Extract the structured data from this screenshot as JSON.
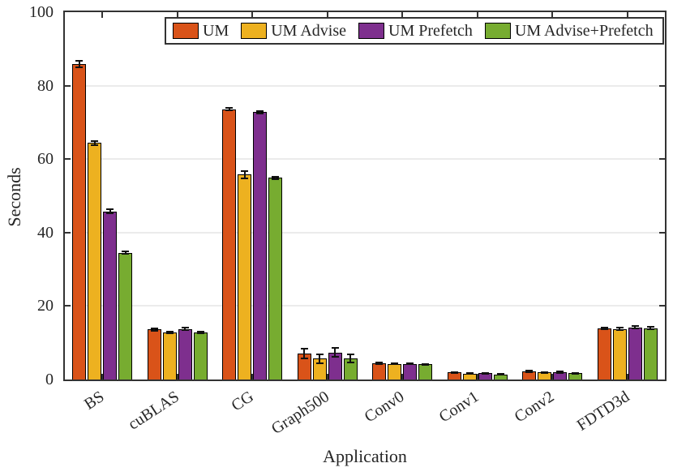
{
  "chart_data": {
    "type": "bar",
    "title": "",
    "xlabel": "Application",
    "ylabel": "Seconds",
    "ylim": [
      0,
      100
    ],
    "yticks": [
      0,
      20,
      40,
      60,
      80,
      100
    ],
    "grid": "horizontal",
    "legend_position": "top-inside-single-row",
    "axis_color": "#333333",
    "grid_color": "#ebebeb",
    "error_bar_color": "#111111",
    "categories": [
      "BS",
      "cuBLAS",
      "CG",
      "Graph500",
      "Conv0",
      "Conv1",
      "Conv2",
      "FDTD3d"
    ],
    "series": [
      {
        "name": "UM",
        "color": "#D95319",
        "values": [
          85.9,
          13.6,
          73.6,
          7.0,
          4.4,
          1.9,
          2.2,
          13.9
        ],
        "errors": [
          0.9,
          0.3,
          0.4,
          1.3,
          0.2,
          0.15,
          0.15,
          0.3
        ]
      },
      {
        "name": "UM Advise",
        "color": "#EDB120",
        "values": [
          64.4,
          12.8,
          55.8,
          5.7,
          4.3,
          1.6,
          1.9,
          13.8
        ],
        "errors": [
          0.5,
          0.3,
          1.0,
          1.2,
          0.2,
          0.15,
          0.15,
          0.3
        ]
      },
      {
        "name": "UM Prefetch",
        "color": "#7E2F8E",
        "values": [
          45.8,
          13.8,
          72.8,
          7.3,
          4.3,
          1.7,
          2.0,
          14.2
        ],
        "errors": [
          0.6,
          0.3,
          0.3,
          1.2,
          0.2,
          0.15,
          0.15,
          0.3
        ]
      },
      {
        "name": "UM Advise+Prefetch",
        "color": "#77AC30",
        "values": [
          34.5,
          12.8,
          54.9,
          5.8,
          4.1,
          1.4,
          1.7,
          14.0
        ],
        "errors": [
          0.3,
          0.3,
          0.3,
          1.1,
          0.2,
          0.15,
          0.15,
          0.3
        ]
      }
    ]
  }
}
